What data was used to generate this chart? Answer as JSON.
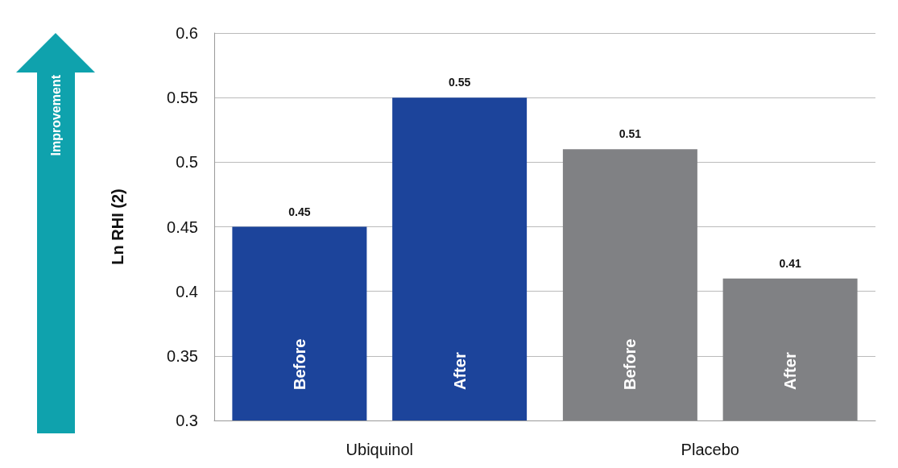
{
  "chart_data": {
    "type": "bar",
    "ylabel": "Ln RHI (2)",
    "categories": [
      "Ubiquinol",
      "Placebo"
    ],
    "series": [
      {
        "name": "Before",
        "colors": [
          "#1c449b",
          "#808184"
        ],
        "values": [
          0.45,
          0.51
        ]
      },
      {
        "name": "After",
        "colors": [
          "#1c449b",
          "#808184"
        ],
        "values": [
          0.55,
          0.41
        ]
      }
    ],
    "ylim": [
      0.3,
      0.6
    ],
    "yticks": [
      0.3,
      0.35,
      0.4,
      0.45,
      0.5,
      0.55,
      0.6
    ],
    "grid": "y",
    "data_labels": true,
    "annotations": [
      "Improvement"
    ]
  }
}
